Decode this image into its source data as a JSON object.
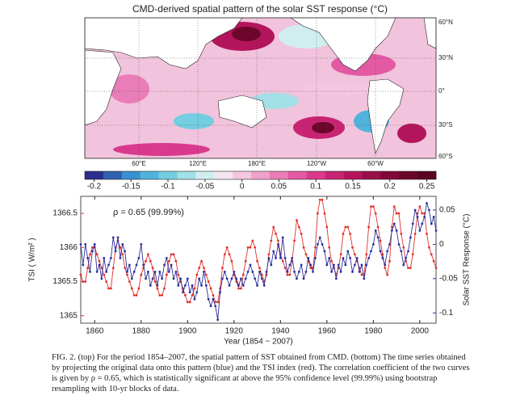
{
  "map": {
    "title": "CMD-derived spatial pattern of the solar SST response (°C)",
    "lon_labels": [
      "60°E",
      "120°E",
      "180°E",
      "120°W",
      "60°W"
    ],
    "lat_labels": [
      "60°N",
      "30°N",
      "0°",
      "30°S",
      "60°S"
    ],
    "colorbar": {
      "clim": [
        -0.2125,
        0.2625
      ],
      "colors": [
        "#2b2f8c",
        "#2f5fb0",
        "#3a8fd0",
        "#4fb3dc",
        "#74cde0",
        "#a3dfe6",
        "#d0eef0",
        "#f2e6ef",
        "#f4c6df",
        "#efa2cb",
        "#e97db8",
        "#e35aa3",
        "#d93a8e",
        "#c92474",
        "#b3155d",
        "#9a0d48",
        "#820937",
        "#6c062a",
        "#5a0420"
      ],
      "ticks": [
        -0.2,
        -0.15,
        -0.1,
        -0.05,
        0,
        0.05,
        0.1,
        0.15,
        0.2,
        0.25
      ]
    }
  },
  "chart_data": {
    "type": "line",
    "xlabel": "Year (1854 ~ 2007)",
    "ylabel": "TSI ( W/m² )",
    "y2label": "Solar SST Response (°C)",
    "annotation": "ρ = 0.65  (99.99%)",
    "xlim": [
      1854,
      2007
    ],
    "xticks": [
      1860,
      1880,
      1900,
      1920,
      1940,
      1960,
      1980,
      2000
    ],
    "ylim": [
      1364.89,
      1366.75
    ],
    "yticks": [
      1365,
      1365.5,
      1366,
      1366.5
    ],
    "y2lim": [
      -0.115,
      0.07
    ],
    "y2ticks": [
      -0.1,
      -0.05,
      0,
      0.05
    ],
    "x": [
      1854,
      1855,
      1856,
      1857,
      1858,
      1859,
      1860,
      1861,
      1862,
      1863,
      1864,
      1865,
      1866,
      1867,
      1868,
      1869,
      1870,
      1871,
      1872,
      1873,
      1874,
      1875,
      1876,
      1877,
      1878,
      1879,
      1880,
      1881,
      1882,
      1883,
      1884,
      1885,
      1886,
      1887,
      1888,
      1889,
      1890,
      1891,
      1892,
      1893,
      1894,
      1895,
      1896,
      1897,
      1898,
      1899,
      1900,
      1901,
      1902,
      1903,
      1904,
      1905,
      1906,
      1907,
      1908,
      1909,
      1910,
      1911,
      1912,
      1913,
      1914,
      1915,
      1916,
      1917,
      1918,
      1919,
      1920,
      1921,
      1922,
      1923,
      1924,
      1925,
      1926,
      1927,
      1928,
      1929,
      1930,
      1931,
      1932,
      1933,
      1934,
      1935,
      1936,
      1937,
      1938,
      1939,
      1940,
      1941,
      1942,
      1943,
      1944,
      1945,
      1946,
      1947,
      1948,
      1949,
      1950,
      1951,
      1952,
      1953,
      1954,
      1955,
      1956,
      1957,
      1958,
      1959,
      1960,
      1961,
      1962,
      1963,
      1964,
      1965,
      1966,
      1967,
      1968,
      1969,
      1970,
      1971,
      1972,
      1973,
      1974,
      1975,
      1976,
      1977,
      1978,
      1979,
      1980,
      1981,
      1982,
      1983,
      1984,
      1985,
      1986,
      1987,
      1988,
      1989,
      1990,
      1991,
      1992,
      1993,
      1994,
      1995,
      1996,
      1997,
      1998,
      1999,
      2000,
      2001,
      2002,
      2003,
      2004,
      2005,
      2006,
      2007
    ],
    "series": [
      {
        "color": "#e0302a",
        "values": [
          1365.6,
          1365.5,
          1365.5,
          1365.7,
          1365.9,
          1366.0,
          1366.0,
          1365.9,
          1365.8,
          1365.7,
          1365.6,
          1365.5,
          1365.4,
          1365.4,
          1365.7,
          1366.0,
          1366.1,
          1366.0,
          1365.9,
          1365.7,
          1365.6,
          1365.5,
          1365.4,
          1365.3,
          1365.3,
          1365.4,
          1365.6,
          1365.7,
          1365.8,
          1365.9,
          1365.8,
          1365.7,
          1365.5,
          1365.4,
          1365.3,
          1365.3,
          1365.4,
          1365.6,
          1365.8,
          1365.9,
          1365.9,
          1365.8,
          1365.6,
          1365.5,
          1365.4,
          1365.3,
          1365.2,
          1365.2,
          1365.3,
          1365.4,
          1365.6,
          1365.7,
          1365.8,
          1365.7,
          1365.6,
          1365.5,
          1365.4,
          1365.3,
          1365.2,
          1365.2,
          1365.4,
          1365.7,
          1365.9,
          1366.0,
          1365.9,
          1365.8,
          1365.6,
          1365.5,
          1365.4,
          1365.4,
          1365.6,
          1365.8,
          1366.0,
          1366.0,
          1366.1,
          1366.0,
          1365.8,
          1365.7,
          1365.6,
          1365.5,
          1365.6,
          1365.9,
          1366.1,
          1366.3,
          1366.2,
          1366.1,
          1365.9,
          1365.8,
          1365.7,
          1365.6,
          1365.6,
          1365.8,
          1366.1,
          1366.4,
          1366.3,
          1366.2,
          1366.0,
          1365.9,
          1365.8,
          1365.7,
          1365.7,
          1366.0,
          1366.5,
          1366.7,
          1366.7,
          1366.5,
          1366.3,
          1366.0,
          1365.8,
          1365.7,
          1365.6,
          1365.7,
          1365.9,
          1366.2,
          1366.3,
          1366.3,
          1366.2,
          1366.0,
          1365.9,
          1365.8,
          1365.7,
          1365.6,
          1365.6,
          1365.9,
          1366.3,
          1366.6,
          1366.6,
          1366.5,
          1366.3,
          1366.1,
          1365.9,
          1365.7,
          1365.6,
          1365.8,
          1366.3,
          1366.6,
          1366.5,
          1366.5,
          1366.2,
          1366.0,
          1365.8,
          1365.7,
          1365.7,
          1365.9,
          1366.2,
          1366.5,
          1366.6,
          1366.5,
          1366.5,
          1366.2,
          1366.0,
          1365.9,
          1365.8,
          1365.7
        ]
      },
      {
        "color": "#2a2f9a",
        "axis": "y2",
        "values": [
          0.0,
          -0.03,
          0.0,
          -0.02,
          -0.04,
          -0.01,
          0.0,
          -0.04,
          -0.03,
          -0.05,
          -0.02,
          -0.04,
          -0.03,
          -0.02,
          0.01,
          -0.01,
          0.01,
          -0.02,
          0.0,
          -0.01,
          -0.04,
          -0.03,
          -0.05,
          -0.04,
          -0.03,
          -0.02,
          0.0,
          -0.03,
          -0.05,
          -0.04,
          -0.06,
          -0.05,
          -0.04,
          -0.06,
          -0.04,
          -0.05,
          -0.03,
          -0.02,
          -0.04,
          -0.03,
          -0.05,
          -0.04,
          -0.06,
          -0.05,
          -0.07,
          -0.06,
          -0.05,
          -0.07,
          -0.06,
          -0.08,
          -0.07,
          -0.05,
          -0.06,
          -0.04,
          -0.06,
          -0.08,
          -0.09,
          -0.08,
          -0.09,
          -0.11,
          -0.07,
          -0.05,
          -0.04,
          -0.05,
          -0.06,
          -0.05,
          -0.04,
          -0.05,
          -0.06,
          -0.05,
          -0.06,
          -0.05,
          -0.04,
          -0.03,
          -0.04,
          -0.05,
          -0.06,
          -0.04,
          -0.05,
          -0.06,
          -0.04,
          -0.02,
          -0.03,
          -0.01,
          -0.02,
          0.0,
          -0.02,
          0.01,
          -0.02,
          -0.04,
          -0.03,
          -0.02,
          -0.04,
          -0.05,
          -0.04,
          -0.03,
          -0.05,
          -0.04,
          -0.02,
          -0.03,
          -0.04,
          -0.02,
          0.0,
          0.01,
          0.0,
          -0.01,
          -0.03,
          -0.02,
          -0.04,
          -0.03,
          -0.05,
          -0.03,
          -0.04,
          -0.02,
          -0.03,
          -0.01,
          -0.02,
          -0.04,
          -0.03,
          -0.02,
          -0.04,
          -0.03,
          -0.05,
          -0.03,
          -0.02,
          -0.01,
          0.0,
          0.02,
          0.01,
          -0.01,
          -0.02,
          -0.03,
          -0.01,
          0.0,
          0.02,
          0.03,
          0.02,
          0.0,
          -0.01,
          -0.03,
          -0.02,
          -0.01,
          0.01,
          0.03,
          0.05,
          0.04,
          0.02,
          0.03,
          0.04,
          0.06,
          0.05,
          0.03,
          0.04,
          0.02
        ]
      }
    ]
  },
  "caption": "FIG. 2. (top) For the period 1854–2007, the spatial pattern of SST obtained from CMD. (bottom) The time series obtained by projecting the original data onto this pattern (blue) and the TSI index (red). The correlation coefficient of the two curves is given by ρ = 0.65, which is statistically significant at above the 95% confidence level (99.99%) using bootstrap resampling with 10-yr blocks of data."
}
